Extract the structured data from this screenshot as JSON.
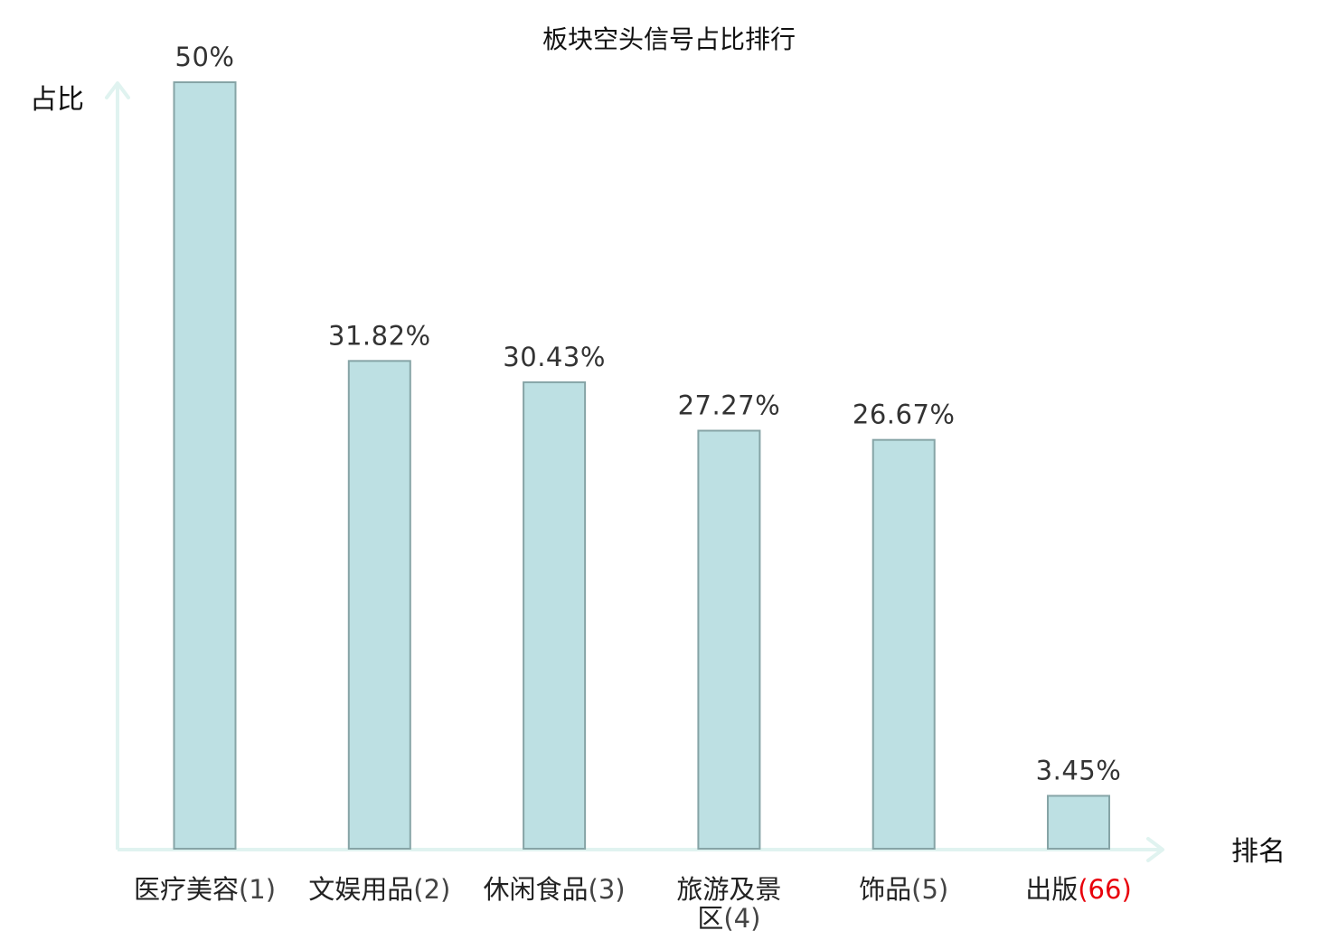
{
  "chart_data": {
    "type": "bar",
    "title": "板块空头信号占比排行",
    "ylabel": "占比",
    "xlabel": "排名",
    "ylim": [
      0,
      50
    ],
    "grid": false,
    "legend": "none",
    "categories": [
      {
        "name": "医疗美容",
        "rank": "(1)",
        "highlight": false
      },
      {
        "name": "文娱用品",
        "rank": "(2)",
        "highlight": false
      },
      {
        "name": "休闲食品",
        "rank": "(3)",
        "highlight": false
      },
      {
        "name": "旅游及景区",
        "rank": "(4)",
        "highlight": false
      },
      {
        "name": "饰品",
        "rank": "(5)",
        "highlight": false
      },
      {
        "name": "出版",
        "rank": "(66)",
        "highlight": true
      }
    ],
    "values": [
      50,
      31.82,
      30.43,
      27.27,
      26.67,
      3.45
    ],
    "value_labels": [
      "50%",
      "31.82%",
      "30.43%",
      "27.27%",
      "26.67%",
      "3.45%"
    ],
    "colors": {
      "bar_fill": "#bde0e3",
      "bar_stroke": "#86a4a6",
      "axis": "#e0f3f0",
      "highlight_text": "#e8000b",
      "text": "#222222"
    }
  }
}
